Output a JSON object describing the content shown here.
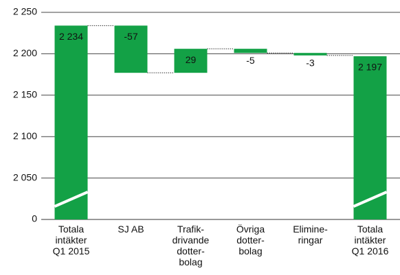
{
  "chart_data": {
    "type": "waterfall",
    "categories": [
      "Totala\nintäkter\nQ1 2015",
      "SJ AB",
      "Trafik-\ndrivande\ndotter-\nbolag",
      "Övriga\ndotter-\nbolag",
      "Elimine-\nringar",
      "Totala\nintäkter\nQ1 2016"
    ],
    "values": [
      2234,
      -57,
      29,
      -5,
      -3,
      2197
    ],
    "value_labels": [
      "2 234",
      "-57",
      "29",
      "-5",
      "-3",
      "2 197"
    ],
    "is_total": [
      true,
      false,
      false,
      false,
      false,
      true
    ],
    "color": "#13a146",
    "ylim": [
      0,
      2250
    ],
    "axis_break": true,
    "yticks": [
      0,
      {
        "value": 2050,
        "label": "2 050"
      },
      {
        "value": 2100,
        "label": "2 100"
      },
      {
        "value": 2150,
        "label": "2 150"
      },
      {
        "value": 2200,
        "label": "2 200"
      },
      {
        "value": 2250,
        "label": "2 250"
      }
    ],
    "grid": true
  }
}
